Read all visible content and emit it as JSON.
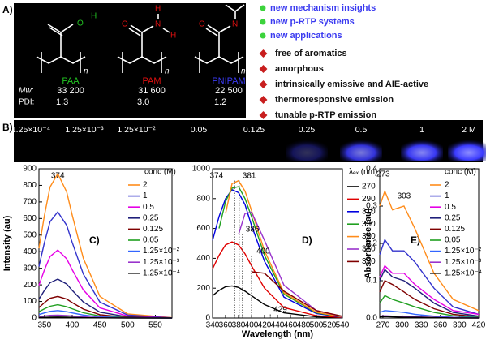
{
  "panel_labels": [
    "A)",
    "B)"
  ],
  "structures": [
    {
      "name": "PAA",
      "color": "#22c322",
      "mw": "33 200",
      "pdi": "1.3",
      "atoms": [
        "O",
        "H",
        "n"
      ]
    },
    {
      "name": "PAM",
      "color": "#e01010",
      "mw": "31 600",
      "pdi": "3.0",
      "atoms": [
        "O",
        "N",
        "H",
        "H",
        "n"
      ]
    },
    {
      "name": "PNIPAM",
      "color": "#3a3af0",
      "mw": "22 500",
      "pdi": "1.2",
      "atoms": [
        "O",
        "N",
        "n"
      ]
    }
  ],
  "row_labels": {
    "mw": "Mw:",
    "pdi": "PDI:"
  },
  "highlights": [
    "new mechanism insights",
    "new p-RTP systems",
    "new applications"
  ],
  "features": [
    "free of aromatics",
    "amorphous",
    "intrinsically emissive and AIE-active",
    "thermoresponsive emission",
    "tunable p-RTP emission"
  ],
  "vial_labels": [
    "1.25×10⁻⁴",
    "1.25×10⁻³",
    "1.25×10⁻²",
    "0.05",
    "0.125",
    "0.25",
    "0.5",
    "1",
    "2 M"
  ],
  "chart_data": [
    {
      "type": "line",
      "label": "C)",
      "ylabel": "Intensity (au)",
      "legend_title": "conc (M)",
      "xlim": [
        340,
        580
      ],
      "xticks": [
        350,
        400,
        450,
        500,
        550
      ],
      "ylim": [
        0,
        900
      ],
      "yticks": [
        0,
        100,
        200,
        300,
        400,
        500,
        600,
        700,
        800,
        900
      ],
      "peak_labels": [
        374
      ],
      "x": [
        340,
        350,
        360,
        374,
        390,
        400,
        420,
        450,
        500,
        580
      ],
      "series": [
        {
          "name": "2",
          "color": "#ff8c1a",
          "values": [
            420,
            620,
            790,
            870,
            760,
            620,
            360,
            130,
            25,
            2
          ]
        },
        {
          "name": "1",
          "color": "#3333cc",
          "values": [
            310,
            456,
            581,
            640,
            559,
            456,
            265,
            96,
            18,
            1
          ]
        },
        {
          "name": "0.5",
          "color": "#e600e6",
          "values": [
            197,
            291,
            371,
            410,
            357,
            291,
            169,
            61,
            12,
            1
          ]
        },
        {
          "name": "0.25",
          "color": "#1f1f7a",
          "values": [
            113,
            167,
            213,
            235,
            205,
            167,
            97,
            35,
            7,
            1
          ]
        },
        {
          "name": "0.125",
          "color": "#7f0000",
          "values": [
            63,
            93,
            119,
            130,
            114,
            93,
            54,
            20,
            4,
            0
          ]
        },
        {
          "name": "0.05",
          "color": "#1f9f1f",
          "values": [
            38,
            56,
            71,
            80,
            68,
            56,
            32,
            12,
            2,
            0
          ]
        },
        {
          "name": "1.25×10⁻²",
          "color": "#3366ff",
          "values": [
            21,
            31,
            40,
            45,
            38,
            31,
            18,
            7,
            1,
            0
          ]
        },
        {
          "name": "1.25×10⁻³",
          "color": "#9933cc",
          "values": [
            8,
            12,
            16,
            17,
            15,
            12,
            7,
            3,
            1,
            0
          ]
        },
        {
          "name": "1.25×10⁻⁴",
          "color": "#000000",
          "values": [
            3,
            4,
            5,
            6,
            5,
            4,
            2,
            1,
            0,
            0
          ]
        }
      ]
    },
    {
      "type": "line",
      "label": "D)",
      "xlabel": "Wavelength (nm)",
      "legend_title": "λₑₓ (nm)",
      "xlim": [
        340,
        540
      ],
      "xticks": [
        340,
        360,
        380,
        400,
        420,
        440,
        460,
        480,
        500,
        520,
        540
      ],
      "ylim": [
        0,
        1000
      ],
      "yticks": [
        0,
        200,
        400,
        600,
        800,
        1000
      ],
      "peak_labels": [
        374,
        381,
        386,
        400,
        429
      ],
      "x": [
        340,
        350,
        360,
        370,
        380,
        390,
        400,
        420,
        450,
        500,
        540
      ],
      "series": [
        {
          "name": "270",
          "color": "#000000",
          "values": [
            150,
            185,
            210,
            215,
            205,
            180,
            150,
            90,
            35,
            8,
            2
          ]
        },
        {
          "name": "290",
          "color": "#e00000",
          "values": [
            330,
            420,
            490,
            510,
            490,
            430,
            350,
            200,
            70,
            15,
            3
          ]
        },
        {
          "name": "310",
          "color": "#0000e0",
          "values": [
            520,
            680,
            800,
            860,
            840,
            760,
            620,
            380,
            140,
            30,
            6
          ]
        },
        {
          "name": "330",
          "color": "#20a020",
          "values": [
            null,
            600,
            780,
            870,
            880,
            800,
            680,
            420,
            160,
            35,
            7
          ]
        },
        {
          "name": "350",
          "color": "#ff8c1a",
          "values": [
            null,
            null,
            700,
            900,
            920,
            850,
            720,
            450,
            170,
            38,
            8
          ]
        },
        {
          "name": "370",
          "color": "#9933cc",
          "values": [
            null,
            null,
            null,
            null,
            560,
            700,
            710,
            520,
            220,
            50,
            10
          ]
        },
        {
          "name": "390",
          "color": "#800000",
          "values": [
            null,
            null,
            null,
            null,
            null,
            null,
            310,
            300,
            180,
            50,
            12
          ]
        }
      ]
    },
    {
      "type": "line",
      "label": "E)",
      "ylabel": "Absorbance (au)",
      "legend_title": "conc (M)",
      "xlim": [
        265,
        420
      ],
      "xticks": [
        270,
        300,
        330,
        360,
        390,
        420
      ],
      "ylim": [
        0,
        0.4
      ],
      "yticks": [
        {
          "value": 0,
          "label": "0.0"
        },
        0.1,
        0.2,
        0.3,
        0.4
      ],
      "peak_labels": [
        273,
        303
      ],
      "x": [
        265,
        273,
        285,
        303,
        320,
        350,
        380,
        420
      ],
      "series": [
        {
          "name": "2",
          "color": "#ff8c1a",
          "values": [
            0.3,
            0.34,
            0.29,
            0.3,
            0.24,
            0.12,
            0.05,
            0.02
          ]
        },
        {
          "name": "1",
          "color": "#3333cc",
          "values": [
            0.17,
            0.21,
            0.18,
            0.18,
            0.15,
            0.08,
            0.03,
            0.01
          ]
        },
        {
          "name": "0.5",
          "color": "#e600e6",
          "values": [
            0.11,
            0.14,
            0.12,
            0.12,
            0.09,
            0.05,
            0.02,
            0.01
          ]
        },
        {
          "name": "0.25",
          "color": "#1f1f7a",
          "values": [
            0.1,
            0.13,
            0.11,
            0.1,
            0.08,
            0.04,
            0.015,
            0.005
          ]
        },
        {
          "name": "0.125",
          "color": "#7f0000",
          "values": [
            0.07,
            0.1,
            0.09,
            0.07,
            0.05,
            0.025,
            0.01,
            0.003
          ]
        },
        {
          "name": "0.05",
          "color": "#1f9f1f",
          "values": [
            0.04,
            0.06,
            0.05,
            0.04,
            0.03,
            0.015,
            0.006,
            0.002
          ]
        },
        {
          "name": "1.25×10⁻²",
          "color": "#3366ff",
          "values": [
            0.015,
            0.02,
            0.018,
            0.015,
            0.01,
            0.005,
            0.002,
            0.001
          ]
        },
        {
          "name": "1.25×10⁻³",
          "color": "#9933cc",
          "values": [
            0.005,
            0.006,
            0.005,
            0.004,
            0.003,
            0.002,
            0.001,
            0
          ]
        },
        {
          "name": "1.25×10⁻⁴",
          "color": "#000000",
          "values": [
            0.003,
            0.004,
            0.003,
            0.002,
            0.002,
            0.001,
            0,
            0
          ]
        }
      ]
    }
  ]
}
